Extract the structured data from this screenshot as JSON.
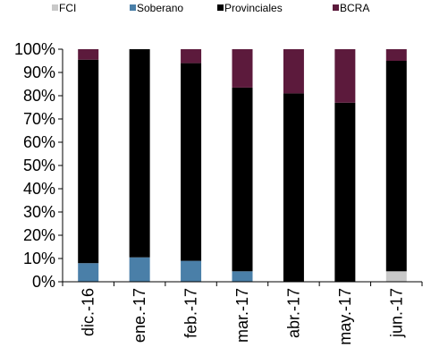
{
  "chart_data": {
    "type": "bar",
    "stacked": true,
    "orientation": "vertical",
    "legend_position": "top",
    "grid": false,
    "categories": [
      "dic.-16",
      "ene.-17",
      "feb.-17",
      "mar.-17",
      "abr.-17",
      "may.-17",
      "jun.-17"
    ],
    "series": [
      {
        "name": "FCI",
        "color": "#c8c8c8",
        "values": [
          0,
          0,
          0,
          0,
          0,
          0,
          4.5
        ]
      },
      {
        "name": "Soberano",
        "color": "#4a7fa8",
        "values": [
          8,
          10.5,
          9,
          4.5,
          0,
          0,
          0
        ]
      },
      {
        "name": "Provinciales",
        "color": "#000000",
        "values": [
          87.5,
          89.5,
          85,
          79,
          81,
          77,
          90.5
        ]
      },
      {
        "name": "BCRA",
        "color": "#5c1a3c",
        "values": [
          4.5,
          0,
          6,
          16.5,
          19,
          23,
          5
        ]
      }
    ],
    "y_ticks": [
      "0%",
      "10%",
      "20%",
      "30%",
      "40%",
      "50%",
      "60%",
      "70%",
      "80%",
      "90%",
      "100%"
    ],
    "ylim": [
      0,
      100
    ],
    "title": "",
    "xlabel": "",
    "ylabel": ""
  }
}
